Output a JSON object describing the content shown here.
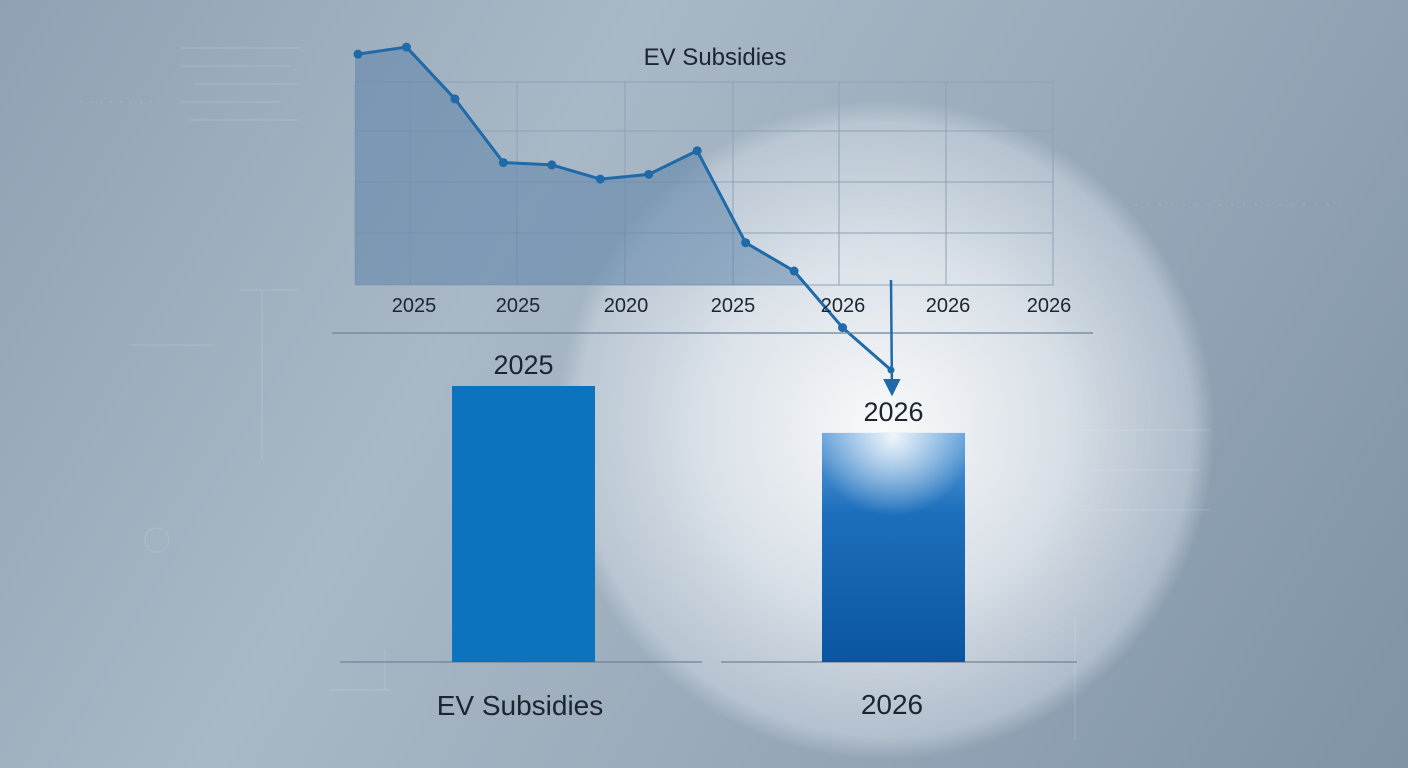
{
  "colors": {
    "line": "#1f6aa8",
    "area": "#5d83a9",
    "bar_left": "#0c74bf",
    "bar_right": "#0d5fa8",
    "grid": "#8ea2b6",
    "text": "#1c2530"
  },
  "chart_data": [
    {
      "type": "line",
      "title": "EV Subsidies",
      "x_tick_labels": [
        "2025",
        "2025",
        "2020",
        "2025",
        "2026",
        "2026",
        "2026"
      ],
      "series": [
        {
          "values": [
            94,
            97,
            75,
            48,
            47,
            41,
            43,
            53,
            14,
            2,
            -22,
            -40
          ]
        }
      ],
      "ylim": [
        -40,
        100
      ],
      "grid": true,
      "fill_under_line": true,
      "annotation": "arrow from the last point down to the 2026 bar"
    },
    {
      "type": "bar",
      "categories": [
        "2025",
        "2026"
      ],
      "values": [
        100,
        83
      ],
      "category_captions": [
        "EV Subsidies",
        "2026"
      ],
      "ylim": [
        0,
        100
      ]
    }
  ]
}
